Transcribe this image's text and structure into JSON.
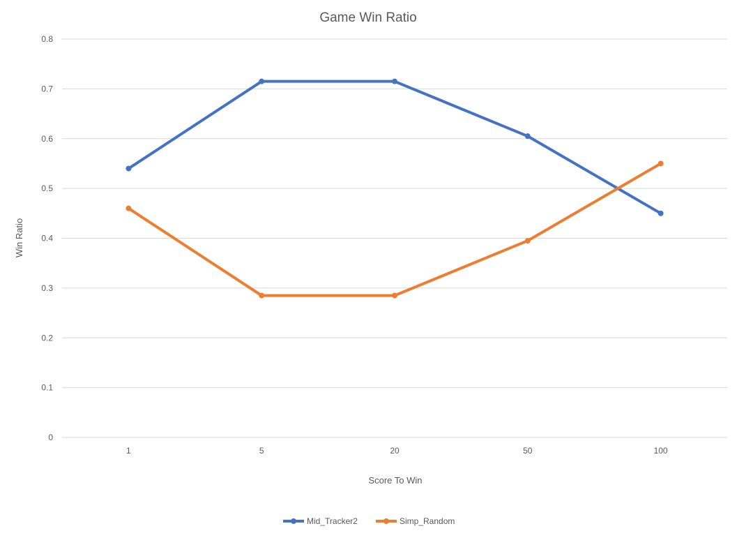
{
  "chart_data": {
    "type": "line",
    "title": "Game Win Ratio",
    "xlabel": "Score To Win",
    "ylabel": "Win Ratio",
    "categories": [
      "1",
      "5",
      "20",
      "50",
      "100"
    ],
    "ylim": [
      0,
      0.8
    ],
    "yticks": [
      "0",
      "0.1",
      "0.2",
      "0.3",
      "0.4",
      "0.5",
      "0.6",
      "0.7",
      "0.8"
    ],
    "grid": true,
    "legend": "bottom",
    "series": [
      {
        "name": "Mid_Tracker2",
        "color": "#4472C4",
        "values": [
          0.54,
          0.715,
          0.715,
          0.605,
          0.45
        ]
      },
      {
        "name": "Simp_Random",
        "color": "#ED7D31",
        "values": [
          0.46,
          0.285,
          0.285,
          0.395,
          0.55
        ]
      }
    ]
  }
}
